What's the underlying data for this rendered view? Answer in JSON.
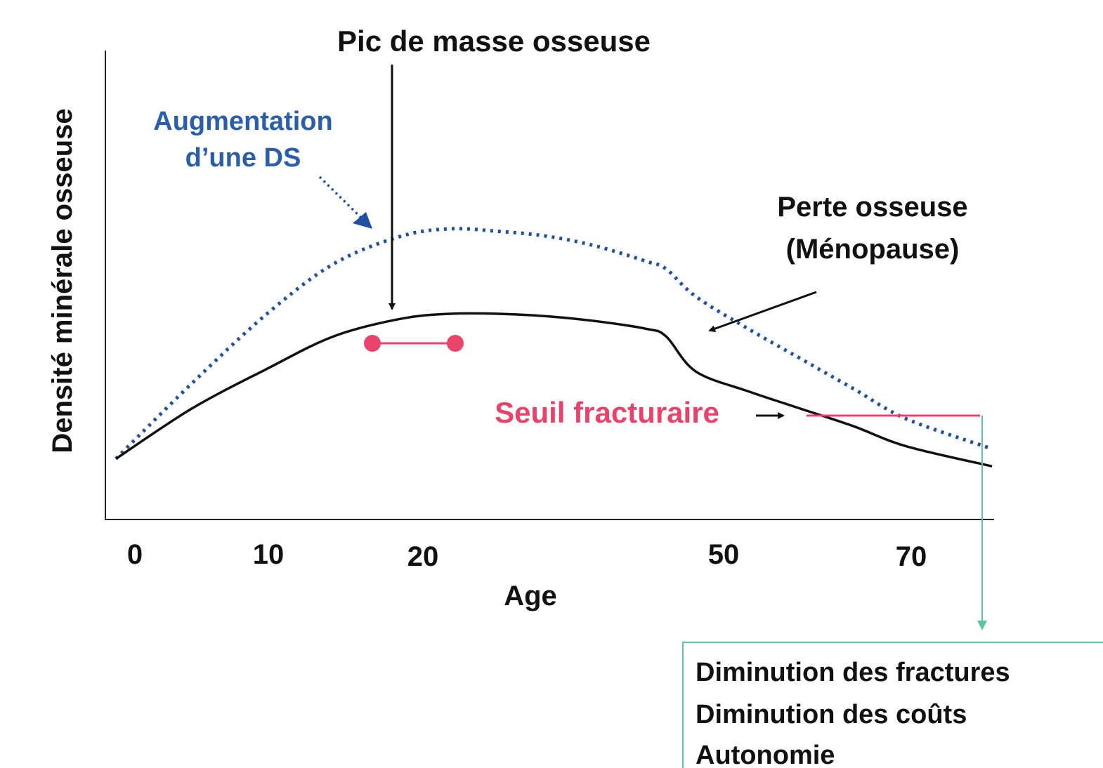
{
  "chart_data": {
    "type": "line",
    "xlabel": "Age",
    "ylabel": "Densité minérale osseuse",
    "x_ticks": [
      "0",
      "10",
      "20",
      "50",
      "70"
    ],
    "series": [
      {
        "style": "solid",
        "color": "#111111",
        "points": [
          [
            0,
            0.08
          ],
          [
            5,
            0.28
          ],
          [
            10,
            0.44
          ],
          [
            15,
            0.57
          ],
          [
            20,
            0.64
          ],
          [
            25,
            0.66
          ],
          [
            30,
            0.66
          ],
          [
            35,
            0.65
          ],
          [
            40,
            0.63
          ],
          [
            45,
            0.6
          ],
          [
            47,
            0.57
          ],
          [
            50,
            0.43
          ],
          [
            55,
            0.35
          ],
          [
            60,
            0.28
          ],
          [
            65,
            0.21
          ],
          [
            70,
            0.13
          ],
          [
            75,
            0.05
          ]
        ]
      },
      {
        "style": "dotted",
        "color": "#1f4fa3",
        "points": [
          [
            0,
            0.08
          ],
          [
            5,
            0.38
          ],
          [
            10,
            0.66
          ],
          [
            15,
            0.86
          ],
          [
            20,
            0.97
          ],
          [
            25,
            1.0
          ],
          [
            30,
            0.99
          ],
          [
            35,
            0.97
          ],
          [
            40,
            0.93
          ],
          [
            45,
            0.87
          ],
          [
            47,
            0.84
          ],
          [
            50,
            0.73
          ],
          [
            55,
            0.6
          ],
          [
            60,
            0.48
          ],
          [
            65,
            0.36
          ],
          [
            70,
            0.24
          ],
          [
            75,
            0.12
          ]
        ]
      }
    ],
    "annotations": {
      "peak": "Pic de masse osseuse",
      "increase_line1": "Augmentation",
      "increase_line2": "d’une DS",
      "loss_line1": "Perte osseuse",
      "loss_line2": "(Ménopause)",
      "threshold": "Seuil fracturaire"
    },
    "colors": {
      "baseline_curve": "#111111",
      "improved_curve": "#1f4fa3",
      "threshold": "#e8436b",
      "outcome_connector": "#5cc5a6"
    }
  },
  "outcomes": [
    "Diminution des fractures",
    "Diminution des coûts",
    "Autonomie"
  ]
}
